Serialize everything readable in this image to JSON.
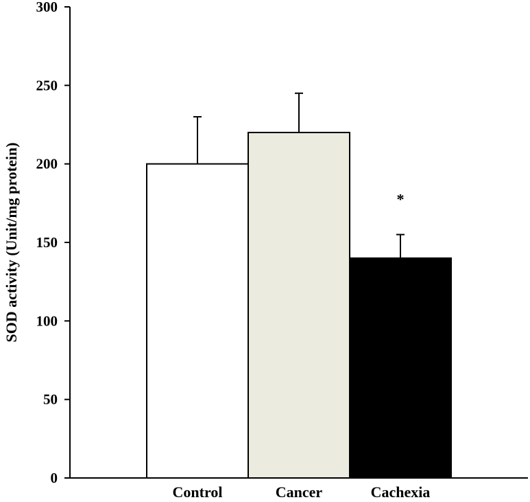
{
  "chart_data": {
    "type": "bar",
    "categories": [
      "Control",
      "Cancer",
      "Cachexia"
    ],
    "values": [
      200,
      220,
      140
    ],
    "errors": [
      30,
      25,
      15
    ],
    "colors": [
      "#ffffff",
      "#ecebe0",
      "#000000"
    ],
    "ylabel": "SOD activity (Unit/mg protein)",
    "ylim": [
      0,
      300
    ],
    "yticks": [
      0,
      50,
      100,
      150,
      200,
      250,
      300
    ],
    "annotations": [
      {
        "category": "Cachexia",
        "text": "*"
      }
    ],
    "grid": false,
    "legend": "none"
  }
}
